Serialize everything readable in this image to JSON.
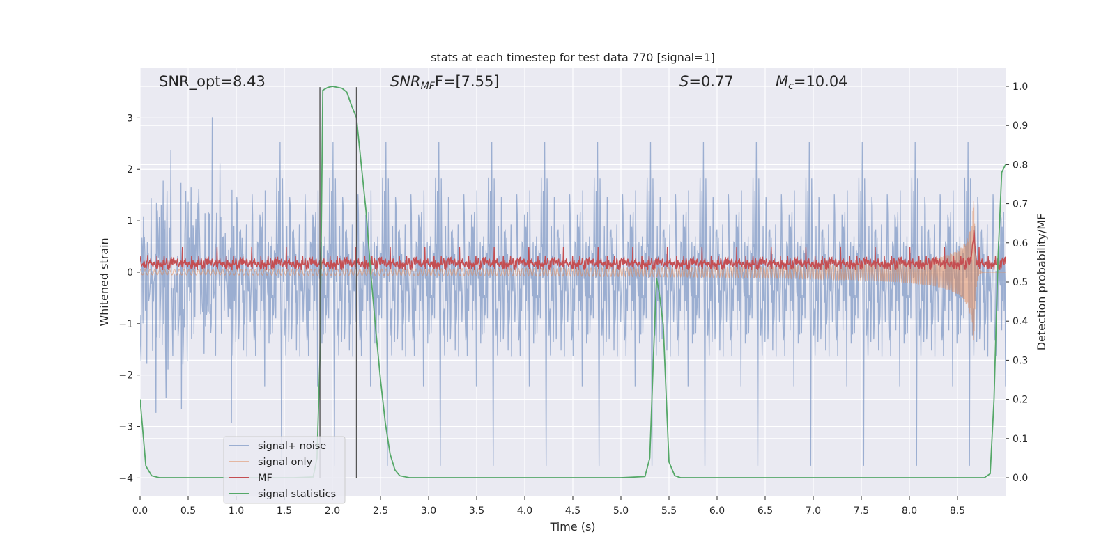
{
  "chart_data": {
    "type": "line",
    "title": "stats at each timestep for test data 770 [signal=1]",
    "xlabel": "Time (s)",
    "ylabel": "Whitened strain",
    "ylabel_right": "Detection probability/MF",
    "xlim": [
      0,
      9.0
    ],
    "ylim": [
      -4.36,
      3.98
    ],
    "ylim_right": [
      -0.048,
      1.048
    ],
    "x_ticks": [
      "0.0",
      "0.5",
      "1.0",
      "1.5",
      "2.0",
      "2.5",
      "3.0",
      "3.5",
      "4.0",
      "4.5",
      "5.0",
      "5.5",
      "6.0",
      "6.5",
      "7.0",
      "7.5",
      "8.0",
      "8.5"
    ],
    "x_tick_values": [
      0,
      0.5,
      1,
      1.5,
      2,
      2.5,
      3,
      3.5,
      4,
      4.5,
      5,
      5.5,
      6,
      6.5,
      7,
      7.5,
      8,
      8.5
    ],
    "y_ticks": [
      "−4",
      "−3",
      "−2",
      "−1",
      "0",
      "1",
      "2",
      "3"
    ],
    "y_tick_values": [
      -4,
      -3,
      -2,
      -1,
      0,
      1,
      2,
      3
    ],
    "y_right_ticks": [
      "0.0",
      "0.1",
      "0.2",
      "0.3",
      "0.4",
      "0.5",
      "0.6",
      "0.7",
      "0.8",
      "0.9",
      "1.0"
    ],
    "y_right_tick_values": [
      0,
      0.1,
      0.2,
      0.3,
      0.4,
      0.5,
      0.6,
      0.7,
      0.8,
      0.9,
      1.0
    ],
    "grid": true,
    "legend_position": "lower-left",
    "annotations": {
      "snr_opt": "SNR_opt=8.43",
      "snr_mf_main": "SNR",
      "snr_mf_sub": "MF",
      "snr_mf_rest": "F=[7.55]",
      "s_main": "S",
      "s_rest": "=0.77",
      "mc_main": "M",
      "mc_sub": "c",
      "mc_rest": "=10.04"
    },
    "vlines": [
      1.87,
      2.25
    ],
    "vline_range": [
      -4.0,
      3.6
    ],
    "series": [
      {
        "name": "signal+ noise",
        "color": "#4c72b0",
        "opacity": 0.5,
        "kind": "noise",
        "axis": "left",
        "std": 0.95,
        "count": 1800
      },
      {
        "name": "signal only",
        "color": "#dd8452",
        "opacity": 0.5,
        "kind": "chirp",
        "axis": "left",
        "merger_time": 8.67,
        "peak_amplitude": 1.5
      },
      {
        "name": "MF",
        "color": "#c44e52",
        "opacity": 1.0,
        "kind": "mf",
        "axis": "left",
        "mean": 0.18,
        "spread": 0.1,
        "count": 1800
      },
      {
        "name": "signal statistics",
        "color": "#55a868",
        "opacity": 1.0,
        "kind": "line",
        "axis": "right",
        "x": [
          0.0,
          0.06,
          0.12,
          0.2,
          0.4,
          0.8,
          1.2,
          1.6,
          1.8,
          1.84,
          1.87,
          1.9,
          1.95,
          2.0,
          2.1,
          2.15,
          2.2,
          2.25,
          2.3,
          2.35,
          2.4,
          2.45,
          2.5,
          2.55,
          2.6,
          2.65,
          2.7,
          2.8,
          3.0,
          4.0,
          5.0,
          5.25,
          5.3,
          5.34,
          5.37,
          5.4,
          5.44,
          5.5,
          5.56,
          5.62,
          6.0,
          7.0,
          8.0,
          8.6,
          8.78,
          8.84,
          8.88,
          8.92,
          8.96,
          9.0
        ],
        "y": [
          0.2,
          0.03,
          0.005,
          0.0,
          0.0,
          0.0,
          0.0,
          0.0,
          0.002,
          0.05,
          0.3,
          0.99,
          0.997,
          1.0,
          0.995,
          0.985,
          0.95,
          0.92,
          0.8,
          0.68,
          0.52,
          0.38,
          0.25,
          0.14,
          0.06,
          0.02,
          0.005,
          0.0,
          0.0,
          0.0,
          0.0,
          0.003,
          0.05,
          0.32,
          0.51,
          0.47,
          0.39,
          0.04,
          0.005,
          0.0,
          0.0,
          0.0,
          0.0,
          0.0,
          0.0,
          0.01,
          0.2,
          0.55,
          0.78,
          0.8
        ]
      }
    ]
  }
}
